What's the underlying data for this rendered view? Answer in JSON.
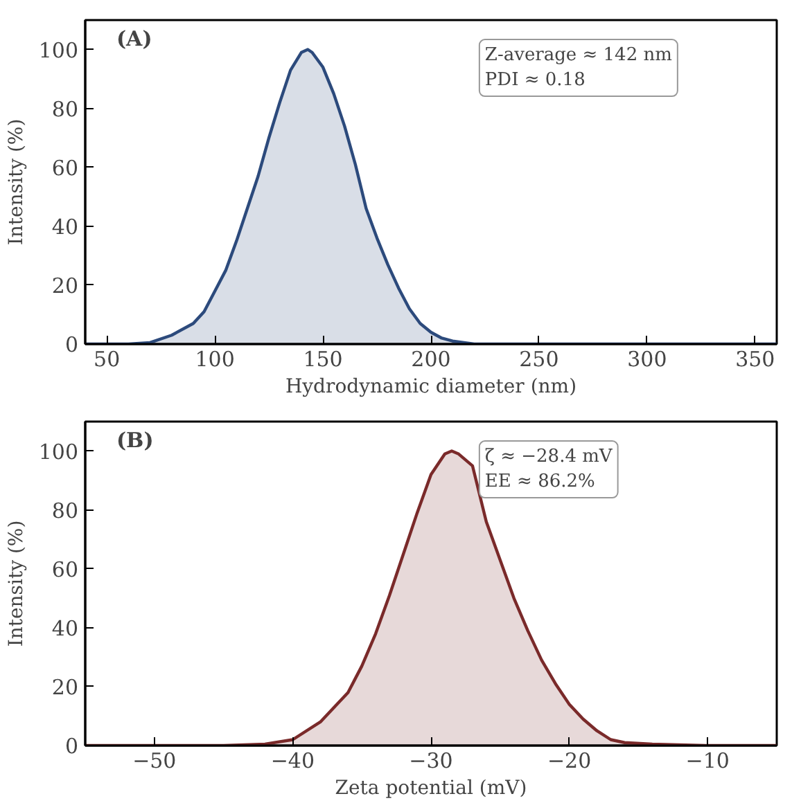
{
  "chart_data": [
    {
      "type": "area",
      "xlabel": "Hydrodynamic diameter (nm)",
      "ylabel": "Intensity (%)",
      "annotations": [
        "(A)",
        "Z-average ≈ 142 nm\nPDI ≈ 0.18"
      ],
      "x": [
        40,
        50,
        60,
        70,
        80,
        90,
        95,
        100,
        105,
        110,
        115,
        120,
        125,
        130,
        135,
        140,
        143,
        145,
        150,
        155,
        160,
        165,
        170,
        175,
        180,
        185,
        190,
        195,
        200,
        205,
        210,
        220,
        250,
        300,
        350,
        360
      ],
      "series": [
        {
          "color": "#2c4a7c",
          "values": [
            0,
            0,
            0,
            0.5,
            3,
            7,
            11,
            18,
            25,
            35,
            46,
            57,
            70,
            82,
            93,
            99,
            100,
            99,
            94,
            85,
            74,
            61,
            46,
            36,
            27,
            19,
            12,
            7,
            4,
            2,
            1,
            0,
            0,
            0,
            0,
            0
          ]
        }
      ],
      "xlim": [
        40,
        360
      ],
      "ylim": [
        0,
        110
      ],
      "xticks": [
        50,
        100,
        150,
        200,
        250,
        300,
        350
      ],
      "yticks": [
        0,
        20,
        40,
        60,
        80,
        100
      ]
    },
    {
      "type": "area",
      "xlabel": "Zeta potential (mV)",
      "ylabel": "Intensity (%)",
      "annotations": [
        "(B)",
        "ζ ≈ −28.4 mV\nEE ≈ 86.2%"
      ],
      "x": [
        -55,
        -50,
        -45,
        -42,
        -40,
        -38,
        -36,
        -35,
        -34,
        -33,
        -32,
        -31,
        -30,
        -29,
        -28.5,
        -28,
        -27,
        -26,
        -25,
        -24,
        -23,
        -22,
        -21,
        -20,
        -19,
        -18,
        -17,
        -16,
        -14,
        -10,
        -5
      ],
      "series": [
        {
          "color": "#7a2a2a",
          "values": [
            0,
            0,
            0,
            0.5,
            2,
            8,
            18,
            27,
            38,
            51,
            65,
            79,
            92,
            99,
            100,
            99,
            95,
            76,
            63,
            50,
            39,
            29,
            21,
            14,
            9,
            5,
            2,
            1,
            0.5,
            0,
            0
          ]
        }
      ],
      "xlim": [
        -55,
        -5
      ],
      "ylim": [
        0,
        110
      ],
      "xticks": [
        -50,
        -40,
        -30,
        -20,
        -10
      ],
      "yticks": [
        0,
        20,
        40,
        60,
        80,
        100
      ]
    }
  ]
}
